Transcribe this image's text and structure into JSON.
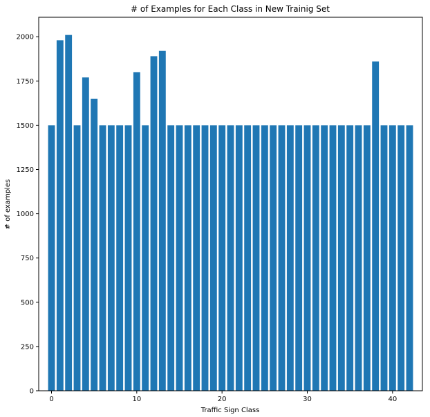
{
  "chart_data": {
    "type": "bar",
    "title": "# of Examples for Each Class in New Trainig Set",
    "xlabel": "Traffic Sign Class",
    "ylabel": "# of examples",
    "x": [
      0,
      1,
      2,
      3,
      4,
      5,
      6,
      7,
      8,
      9,
      10,
      11,
      12,
      13,
      14,
      15,
      16,
      17,
      18,
      19,
      20,
      21,
      22,
      23,
      24,
      25,
      26,
      27,
      28,
      29,
      30,
      31,
      32,
      33,
      34,
      35,
      36,
      37,
      38,
      39,
      40,
      41,
      42
    ],
    "values": [
      1500,
      1980,
      2010,
      1500,
      1770,
      1650,
      1500,
      1500,
      1500,
      1500,
      1800,
      1500,
      1890,
      1920,
      1500,
      1500,
      1500,
      1500,
      1500,
      1500,
      1500,
      1500,
      1500,
      1500,
      1500,
      1500,
      1500,
      1500,
      1500,
      1500,
      1500,
      1500,
      1500,
      1500,
      1500,
      1500,
      1500,
      1500,
      1860,
      1500,
      1500,
      1500,
      1500
    ],
    "xlim": [
      -1.5,
      43.5
    ],
    "ylim": [
      0,
      2110
    ],
    "xticks": [
      0,
      10,
      20,
      30,
      40
    ],
    "yticks": [
      0,
      250,
      500,
      750,
      1000,
      1250,
      1500,
      1750,
      2000
    ],
    "grid": false,
    "bar_color": "#1f77b4"
  }
}
